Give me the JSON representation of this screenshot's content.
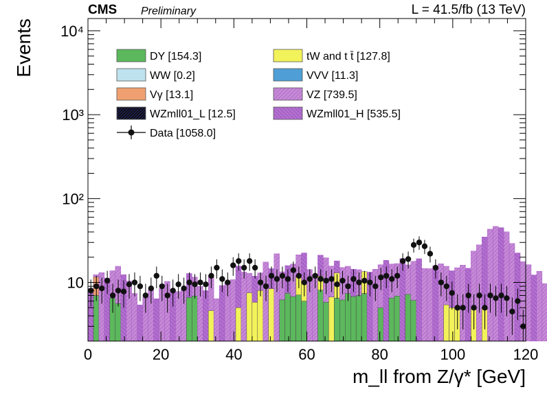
{
  "header": {
    "experiment": "CMS",
    "status": "Preliminary",
    "lumi": "L = 41.5/fb (13 TeV)"
  },
  "chart_data": {
    "type": "bar",
    "subtype": "stacked-histogram-with-data-points",
    "xlabel": "m_ll from Z/γ* [GeV]",
    "ylabel": "Events",
    "xlim": [
      0,
      120
    ],
    "ylim": [
      2,
      14000
    ],
    "yscale": "log",
    "x_ticks": [
      0,
      20,
      40,
      60,
      80,
      100,
      120
    ],
    "y_ticks": [
      {
        "value": 10,
        "label": "10"
      },
      {
        "value": 100,
        "label": "10²"
      },
      {
        "value": 1000,
        "label": "10³"
      },
      {
        "value": 10000,
        "label": "10⁴"
      }
    ],
    "legend_position": "top-left, two columns",
    "bin_edges_start": 0,
    "bin_width": 1.5,
    "legend": [
      {
        "key": "dy",
        "label": "DY [154.3]",
        "color": "#5cb85c"
      },
      {
        "key": "top",
        "label": "tW and t t̄ [127.8]",
        "color": "#f2f25a"
      },
      {
        "key": "ww",
        "label": "WW [0.2]",
        "color": "#bfe3ee"
      },
      {
        "key": "vvv",
        "label": "VVV [11.3]",
        "color": "#4f9fd6"
      },
      {
        "key": "vg",
        "label": "Vγ [13.1]",
        "color": "#f0a070"
      },
      {
        "key": "vz",
        "label": "VZ [739.5]",
        "color": "#c58ad6"
      },
      {
        "key": "wzl",
        "label": "WZmll01_L [12.5]",
        "color": "#1a1a99"
      },
      {
        "key": "wzh",
        "label": "WZmll01_H [535.5]",
        "color": "#a85ac9"
      },
      {
        "key": "data",
        "label": "Data [1058.0]",
        "color": "#000000"
      }
    ],
    "stack_total": [
      8.5,
      12.4,
      13.1,
      11.3,
      13.8,
      15.6,
      12.4,
      10.4,
      7.4,
      5.4,
      6.7,
      8.2,
      6.4,
      8.5,
      10.3,
      7.6,
      7.8,
      8.2,
      12.8,
      11.6,
      9.0,
      8.0,
      12.1,
      6.4,
      9.2,
      10.1,
      10.8,
      15.7,
      13.3,
      12.9,
      11.9,
      13.0,
      17.5,
      14.6,
      22.0,
      13.4,
      15.9,
      16.6,
      21.4,
      22.5,
      14.3,
      12.1,
      21.2,
      19.7,
      15.7,
      18.1,
      15.1,
      15.6,
      14.4,
      14.2,
      10.3,
      13.3,
      14.4,
      16.3,
      18.4,
      16.6,
      16.8,
      19.3,
      16.2,
      17.9,
      19.2,
      14.7,
      14.6,
      15.8,
      16.7,
      15.6,
      13.8,
      15.0,
      16.1,
      14.8,
      23.7,
      28.1,
      34.9,
      43.2,
      46.6,
      45.1,
      40.2,
      29.2,
      22.5,
      17.7,
      16.3,
      12.3,
      13.6,
      9.7,
      10.2,
      8.7,
      10.1,
      9.6,
      9.5,
      8.4,
      8.5,
      7.9,
      8.0,
      7.6,
      7.5,
      7.1,
      6.9,
      8.6,
      6.2,
      6.1,
      5.6,
      6.5,
      6.0,
      6.6,
      6.9,
      6.4,
      6.4,
      6.7,
      6.0,
      5.4,
      6.6,
      5.6,
      5.8,
      5.5,
      5.2,
      5.4,
      5.2,
      4.6,
      5.0,
      4.8
    ],
    "series": [
      {
        "key": "dy",
        "values": [
          0,
          5.0,
          0,
          0,
          4.5,
          3.6,
          0,
          0,
          0,
          0,
          0,
          0,
          0,
          0,
          0,
          0,
          0,
          0,
          4.6,
          4.9,
          0,
          0,
          0,
          0,
          0,
          0,
          0,
          0,
          0,
          0,
          0,
          0,
          0,
          0,
          0,
          4.2,
          5.4,
          4.8,
          5.1,
          4.0,
          0,
          0,
          6.1,
          3.8,
          0,
          4.5,
          4.2,
          5.4,
          4.8,
          5.0,
          5.4,
          0,
          0,
          3.0,
          0,
          4.5,
          4.9,
          0,
          5.2,
          4.1,
          0,
          0,
          0,
          0,
          0,
          0,
          0,
          0,
          0,
          0,
          0,
          0,
          0,
          0,
          0,
          0,
          0,
          0,
          0,
          0,
          0,
          0,
          0,
          0,
          0,
          0,
          0,
          0,
          0,
          0,
          0,
          0,
          0,
          0,
          0,
          0,
          0,
          0,
          0,
          0,
          0,
          0,
          0,
          0,
          0,
          0,
          0,
          0,
          0,
          0,
          0,
          0,
          0,
          0,
          0,
          0,
          0,
          0,
          0,
          0
        ]
      },
      {
        "key": "top",
        "values": [
          0,
          0,
          0,
          0,
          0,
          0,
          0,
          0,
          0,
          0,
          0,
          0,
          0,
          0,
          0,
          0,
          0,
          0,
          0,
          0,
          0,
          0,
          2.6,
          0,
          0,
          0,
          0,
          3.0,
          0,
          5.5,
          3.8,
          6.0,
          0,
          6.4,
          0,
          0,
          0,
          0,
          4.8,
          4.2,
          0,
          0,
          3.8,
          0,
          4.7,
          6.5,
          0,
          0,
          0,
          0,
          6.1,
          0,
          0,
          0,
          0,
          0,
          0,
          0,
          0,
          0,
          0,
          0,
          0,
          0,
          0,
          3.4,
          3.0,
          3.1,
          0,
          0,
          2.9,
          0,
          3.0,
          0,
          0,
          0,
          0,
          0,
          0,
          0,
          0,
          0,
          0,
          0,
          0,
          0,
          0,
          0,
          0,
          0,
          0,
          0,
          0,
          0,
          0,
          0,
          0,
          0,
          0,
          0,
          0,
          0,
          0,
          0,
          0,
          0,
          0,
          0,
          0,
          0,
          0,
          0,
          0,
          0,
          0,
          0,
          0,
          0,
          0
        ]
      },
      {
        "key": "vg",
        "values": [
          0,
          4.6,
          0,
          0,
          0,
          0,
          0,
          0,
          0,
          0,
          0,
          0,
          0,
          0,
          0,
          0,
          0,
          0,
          0,
          0,
          0,
          0,
          0,
          0,
          0,
          0,
          0,
          0,
          0,
          0,
          0,
          0,
          0,
          0,
          0,
          0,
          0,
          0,
          0,
          0,
          0,
          0,
          0,
          0,
          0,
          0,
          0,
          0,
          0,
          0,
          0,
          0,
          0,
          0,
          0,
          0,
          0,
          0,
          0,
          0,
          0,
          0,
          0,
          0,
          0,
          0,
          0,
          0,
          0,
          0,
          0,
          0,
          0,
          0,
          0,
          0,
          0,
          0,
          0,
          0,
          0,
          0,
          0,
          0,
          0,
          0,
          0,
          0,
          0,
          0,
          0,
          0,
          0,
          0,
          0,
          0,
          0,
          0,
          0,
          0,
          0,
          0,
          0,
          0,
          0,
          0,
          0,
          0,
          0,
          0,
          0,
          0,
          0,
          0,
          0,
          0,
          0,
          0,
          0,
          0
        ]
      }
    ],
    "data_points": [
      {
        "x": 0.8,
        "y": 8.0
      },
      {
        "x": 2.3,
        "y": 9.0
      },
      {
        "x": 3.8,
        "y": 8.5
      },
      {
        "x": 5.3,
        "y": 10.5
      },
      {
        "x": 6.8,
        "y": 7.0
      },
      {
        "x": 8.3,
        "y": 8.0
      },
      {
        "x": 9.8,
        "y": 7.8
      },
      {
        "x": 11.3,
        "y": 9.5
      },
      {
        "x": 12.8,
        "y": 10.0
      },
      {
        "x": 14.3,
        "y": 9.0
      },
      {
        "x": 15.8,
        "y": 7.0
      },
      {
        "x": 17.3,
        "y": 8.5
      },
      {
        "x": 18.8,
        "y": 12.0
      },
      {
        "x": 20.3,
        "y": 9.0
      },
      {
        "x": 21.8,
        "y": 7.0
      },
      {
        "x": 23.3,
        "y": 8.0
      },
      {
        "x": 24.8,
        "y": 9.5
      },
      {
        "x": 26.3,
        "y": 8.5
      },
      {
        "x": 27.8,
        "y": 10.0
      },
      {
        "x": 29.3,
        "y": 9.5
      },
      {
        "x": 30.8,
        "y": 10.0
      },
      {
        "x": 32.3,
        "y": 9.5
      },
      {
        "x": 33.8,
        "y": 12.0
      },
      {
        "x": 35.3,
        "y": 15.0
      },
      {
        "x": 36.8,
        "y": 11.0
      },
      {
        "x": 38.3,
        "y": 10.0
      },
      {
        "x": 39.8,
        "y": 16.0
      },
      {
        "x": 41.3,
        "y": 18.0
      },
      {
        "x": 42.8,
        "y": 15.0
      },
      {
        "x": 44.3,
        "y": 18.0
      },
      {
        "x": 45.8,
        "y": 15.0
      },
      {
        "x": 47.3,
        "y": 10.0
      },
      {
        "x": 48.8,
        "y": 9.0
      },
      {
        "x": 50.3,
        "y": 12.0
      },
      {
        "x": 51.8,
        "y": 11.0
      },
      {
        "x": 53.3,
        "y": 12.0
      },
      {
        "x": 54.8,
        "y": 11.0
      },
      {
        "x": 56.3,
        "y": 14.0
      },
      {
        "x": 57.8,
        "y": 12.0
      },
      {
        "x": 59.3,
        "y": 10.0
      },
      {
        "x": 60.8,
        "y": 11.0
      },
      {
        "x": 62.3,
        "y": 12.0
      },
      {
        "x": 63.8,
        "y": 11.0
      },
      {
        "x": 65.3,
        "y": 10.5
      },
      {
        "x": 66.8,
        "y": 11.0
      },
      {
        "x": 68.3,
        "y": 9.5
      },
      {
        "x": 69.8,
        "y": 10.5
      },
      {
        "x": 71.3,
        "y": 9.0
      },
      {
        "x": 72.8,
        "y": 11.0
      },
      {
        "x": 74.3,
        "y": 10.0
      },
      {
        "x": 75.8,
        "y": 10.5
      },
      {
        "x": 77.3,
        "y": 10.0
      },
      {
        "x": 78.8,
        "y": 9.0
      },
      {
        "x": 80.3,
        "y": 11.5
      },
      {
        "x": 81.8,
        "y": 12.0
      },
      {
        "x": 83.3,
        "y": 11.0
      },
      {
        "x": 84.8,
        "y": 12.0
      },
      {
        "x": 86.3,
        "y": 18.0
      },
      {
        "x": 87.8,
        "y": 19.0
      },
      {
        "x": 89.3,
        "y": 28.0
      },
      {
        "x": 90.8,
        "y": 30.0
      },
      {
        "x": 92.3,
        "y": 27.0
      },
      {
        "x": 93.8,
        "y": 22.0
      },
      {
        "x": 95.3,
        "y": 15.0
      },
      {
        "x": 96.8,
        "y": 10.0
      },
      {
        "x": 98.3,
        "y": 9.0
      },
      {
        "x": 99.8,
        "y": 7.5
      },
      {
        "x": 101.3,
        "y": 5.0
      },
      {
        "x": 102.8,
        "y": 5.0
      },
      {
        "x": 104.3,
        "y": 7.0
      },
      {
        "x": 105.8,
        "y": 5.0
      },
      {
        "x": 107.3,
        "y": 7.0
      },
      {
        "x": 108.8,
        "y": 5.0
      },
      {
        "x": 110.3,
        "y": 7.0
      },
      {
        "x": 111.8,
        "y": 6.5
      },
      {
        "x": 113.3,
        "y": 7.0
      },
      {
        "x": 114.8,
        "y": 6.5
      },
      {
        "x": 116.3,
        "y": 4.5
      },
      {
        "x": 117.8,
        "y": 6.0
      },
      {
        "x": 119.3,
        "y": 3.0
      }
    ]
  }
}
